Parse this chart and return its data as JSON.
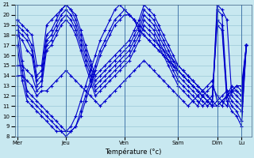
{
  "xlabel": "Température (°c)",
  "background_color": "#c8e8f0",
  "grid_color": "#90c0d0",
  "line_color": "#0000cc",
  "ylim": [
    8,
    21
  ],
  "yticks": [
    8,
    9,
    10,
    11,
    12,
    13,
    14,
    15,
    16,
    17,
    18,
    19,
    20,
    21
  ],
  "day_labels": [
    "Mer",
    "Jeu",
    "Ven",
    "Sam",
    "Dim",
    "Lu"
  ],
  "day_x": [
    0,
    10,
    22,
    33,
    41,
    46
  ],
  "xlim": [
    -0.5,
    48
  ],
  "series": [
    [
      19.5,
      19.0,
      18.5,
      18.0,
      15.0,
      15.0,
      19.0,
      19.5,
      20.0,
      20.5,
      21.0,
      20.5,
      20.0,
      18.5,
      17.0,
      15.5,
      14.0,
      14.5,
      15.0,
      15.5,
      16.0,
      16.5,
      17.0,
      17.5,
      18.5,
      19.5,
      21.0,
      20.5,
      20.0,
      19.0,
      18.0,
      17.0,
      16.0,
      15.0,
      14.5,
      14.0,
      13.5,
      13.0,
      12.5,
      12.0,
      11.5,
      21.0,
      20.5,
      19.5,
      12.0,
      11.5,
      11.0,
      17.0
    ],
    [
      19.0,
      18.5,
      18.0,
      17.0,
      14.0,
      14.5,
      18.0,
      18.5,
      19.5,
      20.5,
      21.0,
      20.5,
      19.5,
      18.0,
      16.5,
      15.0,
      13.5,
      14.0,
      14.5,
      15.0,
      15.5,
      16.0,
      16.5,
      17.0,
      18.0,
      19.0,
      20.5,
      20.0,
      19.5,
      18.5,
      17.5,
      16.5,
      15.5,
      14.5,
      14.0,
      13.5,
      13.0,
      12.5,
      12.0,
      11.5,
      11.0,
      20.5,
      20.0,
      12.5,
      11.5,
      11.0,
      10.5,
      17.0
    ],
    [
      18.5,
      18.0,
      17.5,
      16.5,
      13.5,
      14.0,
      17.5,
      18.0,
      19.0,
      20.0,
      20.5,
      20.0,
      19.0,
      17.5,
      16.0,
      14.5,
      13.0,
      13.5,
      14.0,
      14.5,
      15.0,
      15.5,
      16.0,
      16.5,
      17.5,
      18.5,
      20.0,
      19.5,
      19.0,
      18.0,
      17.0,
      16.0,
      15.0,
      14.0,
      13.5,
      13.0,
      12.5,
      12.0,
      11.5,
      11.0,
      11.5,
      19.5,
      19.0,
      12.0,
      11.0,
      10.5,
      9.5,
      17.0
    ],
    [
      18.0,
      17.5,
      16.5,
      16.0,
      13.0,
      13.5,
      17.0,
      17.5,
      18.5,
      19.5,
      20.0,
      19.5,
      18.5,
      17.0,
      15.5,
      14.0,
      12.5,
      13.0,
      13.5,
      14.0,
      14.5,
      15.0,
      15.5,
      16.0,
      17.0,
      18.0,
      19.5,
      19.0,
      18.5,
      17.5,
      16.5,
      15.5,
      14.5,
      13.5,
      13.0,
      12.5,
      12.0,
      11.5,
      11.0,
      11.5,
      12.0,
      19.0,
      18.5,
      11.5,
      10.5,
      10.0,
      9.0,
      17.0
    ],
    [
      15.0,
      15.0,
      14.5,
      14.0,
      12.5,
      13.0,
      16.5,
      17.0,
      18.0,
      19.0,
      19.5,
      19.0,
      18.0,
      16.5,
      15.0,
      13.5,
      12.0,
      12.5,
      13.0,
      13.5,
      14.0,
      14.5,
      15.0,
      15.5,
      16.5,
      17.5,
      19.0,
      18.5,
      18.0,
      17.0,
      16.0,
      15.0,
      14.0,
      13.0,
      12.5,
      12.0,
      11.5,
      11.0,
      12.0,
      12.5,
      13.0,
      12.0,
      11.5,
      11.0,
      12.5,
      12.0,
      11.5,
      17.0
    ],
    [
      14.0,
      14.0,
      13.5,
      13.0,
      12.0,
      12.5,
      12.5,
      13.0,
      13.5,
      14.0,
      14.5,
      14.0,
      13.5,
      13.0,
      12.5,
      12.0,
      11.5,
      11.0,
      11.5,
      12.0,
      12.5,
      13.0,
      13.5,
      14.0,
      14.5,
      15.0,
      15.5,
      15.0,
      14.5,
      14.0,
      13.5,
      13.0,
      12.5,
      12.0,
      11.5,
      11.0,
      11.5,
      12.0,
      12.5,
      13.0,
      13.5,
      11.5,
      11.0,
      12.0,
      13.0,
      12.5,
      12.0,
      17.0
    ],
    [
      19.5,
      15.5,
      12.5,
      12.0,
      11.5,
      11.0,
      10.5,
      10.0,
      9.5,
      9.0,
      8.5,
      8.5,
      9.0,
      10.0,
      11.5,
      13.0,
      14.5,
      16.0,
      17.0,
      18.0,
      19.0,
      19.5,
      20.0,
      20.0,
      19.5,
      19.0,
      18.5,
      18.0,
      17.5,
      17.0,
      16.5,
      16.0,
      15.5,
      15.0,
      14.5,
      14.0,
      13.5,
      13.0,
      12.5,
      12.0,
      11.5,
      11.0,
      11.5,
      12.0,
      12.5,
      13.0,
      12.5,
      17.0
    ],
    [
      18.0,
      14.5,
      12.0,
      11.5,
      11.0,
      10.5,
      10.0,
      9.5,
      9.0,
      8.5,
      8.0,
      8.5,
      9.0,
      10.5,
      12.0,
      13.5,
      15.0,
      16.5,
      17.5,
      18.5,
      19.5,
      20.0,
      20.5,
      20.0,
      19.5,
      18.5,
      18.0,
      17.5,
      17.0,
      16.5,
      16.0,
      15.5,
      15.0,
      14.5,
      14.0,
      13.5,
      13.0,
      12.5,
      12.0,
      11.5,
      11.0,
      11.0,
      11.5,
      12.0,
      12.5,
      13.0,
      13.0,
      17.0
    ],
    [
      17.0,
      13.5,
      11.5,
      11.0,
      10.5,
      10.0,
      9.5,
      9.0,
      8.5,
      8.5,
      8.5,
      9.0,
      10.0,
      11.5,
      13.0,
      14.5,
      16.0,
      17.5,
      18.5,
      19.5,
      20.5,
      21.0,
      20.5,
      20.0,
      19.5,
      18.5,
      18.0,
      17.5,
      17.0,
      16.5,
      16.0,
      15.5,
      15.0,
      14.5,
      14.0,
      13.5,
      13.0,
      12.5,
      12.0,
      11.5,
      11.0,
      11.5,
      12.0,
      12.5,
      12.5,
      12.5,
      12.0,
      17.0
    ]
  ]
}
